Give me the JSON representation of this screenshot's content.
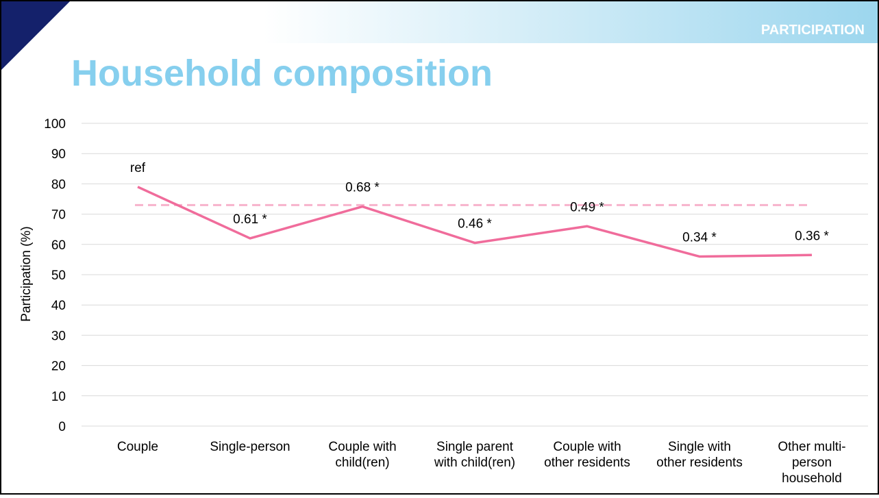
{
  "header_label": "PARTICIPATION",
  "chart_data": {
    "type": "line",
    "title": "Household composition",
    "y_label": "Participation (%)",
    "categories": [
      "Couple",
      "Single-person",
      "Couple with\nchild(ren)",
      "Single parent\nwith child(ren)",
      "Couple with\nother residents",
      "Single with\nother residents",
      "Other multi-\nperson\nhousehold"
    ],
    "series": [
      {
        "name": "Participation",
        "color": "#f06c9b",
        "values": [
          79,
          62,
          72.5,
          60.5,
          66,
          56,
          56.5
        ]
      }
    ],
    "point_labels": [
      "ref",
      "0.61 *",
      "0.68 *",
      "0.46 *",
      "0.49 *",
      "0.34 *",
      "0.36 *"
    ],
    "reference_line": 73,
    "reference_color": "#f7b3cc",
    "ylim": [
      0,
      100
    ],
    "yticks": [
      0,
      10,
      20,
      30,
      40,
      50,
      60,
      70,
      80,
      90,
      100
    ],
    "grid": true
  }
}
